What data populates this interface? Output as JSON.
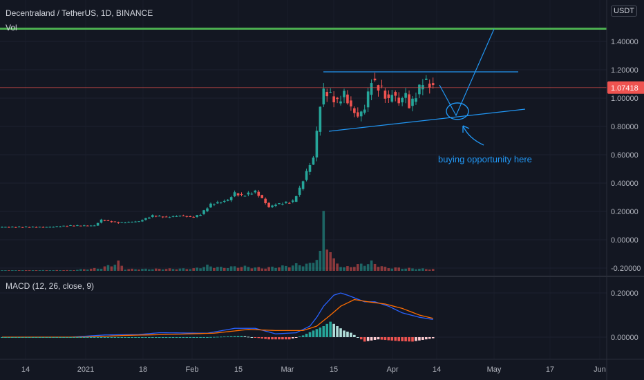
{
  "header": {
    "symbol": "Decentraland / TetherUS, 1D, BINANCE",
    "vol_label": "Vol",
    "macd_label": "MACD (12, 26, close, 9)",
    "unit": "USDT",
    "price_tag": "1.07418"
  },
  "annotation": {
    "text": "buying opportunity here"
  },
  "colors": {
    "background": "#131722",
    "up": "#26a69a",
    "down": "#ef5350",
    "resistance": "#4caf50",
    "annotation": "#2196f3",
    "macd": "#2962ff",
    "signal": "#ff6d00"
  },
  "chart_data": [
    {
      "type": "candlestick",
      "title": "Decentraland / TetherUS, 1D, BINANCE",
      "x_ticks": [
        "14",
        "2021",
        "18",
        "Feb",
        "15",
        "Mar",
        "15",
        "Apr",
        "14",
        "May",
        "17",
        "Jun"
      ],
      "y_ticks": [
        "1.40000",
        "1.20000",
        "1.00000",
        "0.80000",
        "0.60000",
        "0.40000",
        "0.20000",
        "0.00000",
        "-0.20000"
      ],
      "ylim": [
        -0.2,
        1.55
      ],
      "last_price": 1.07418,
      "resistance_level": 1.49,
      "price_path": [
        [
          0,
          0.09
        ],
        [
          14,
          0.09
        ],
        [
          20,
          0.1
        ],
        [
          27,
          0.1
        ],
        [
          29,
          0.14
        ],
        [
          34,
          0.12
        ],
        [
          40,
          0.13
        ],
        [
          44,
          0.17
        ],
        [
          48,
          0.16
        ],
        [
          52,
          0.17
        ],
        [
          56,
          0.16
        ],
        [
          58,
          0.18
        ],
        [
          61,
          0.25
        ],
        [
          66,
          0.28
        ],
        [
          68,
          0.33
        ],
        [
          70,
          0.31
        ],
        [
          74,
          0.34
        ],
        [
          76,
          0.29
        ],
        [
          78,
          0.23
        ],
        [
          80,
          0.25
        ],
        [
          85,
          0.27
        ],
        [
          87,
          0.36
        ],
        [
          89,
          0.48
        ],
        [
          91,
          0.58
        ],
        [
          93,
          0.95
        ],
        [
          94,
          1.05
        ],
        [
          96,
          1.02
        ],
        [
          98,
          0.97
        ],
        [
          100,
          1.03
        ],
        [
          102,
          0.93
        ],
        [
          104,
          0.87
        ],
        [
          106,
          0.93
        ],
        [
          108,
          1.13
        ],
        [
          109,
          1.1
        ],
        [
          111,
          1.06
        ],
        [
          113,
          0.98
        ],
        [
          114,
          1.04
        ],
        [
          116,
          0.97
        ],
        [
          118,
          1.03
        ],
        [
          119,
          0.94
        ],
        [
          121,
          1.02
        ],
        [
          123,
          1.12
        ],
        [
          125,
          1.1
        ],
        [
          126,
          1.07
        ]
      ],
      "volume": [
        [
          0,
          0.01
        ],
        [
          20,
          0.012
        ],
        [
          29,
          0.05
        ],
        [
          34,
          0.15
        ],
        [
          36,
          0.03
        ],
        [
          56,
          0.04
        ],
        [
          60,
          0.09
        ],
        [
          64,
          0.06
        ],
        [
          70,
          0.08
        ],
        [
          76,
          0.05
        ],
        [
          84,
          0.09
        ],
        [
          86,
          0.11
        ],
        [
          90,
          0.12
        ],
        [
          92,
          0.25
        ],
        [
          93,
          0.3
        ],
        [
          94,
          1.0
        ],
        [
          95,
          0.55
        ],
        [
          97,
          0.18
        ],
        [
          100,
          0.06
        ],
        [
          108,
          0.15
        ],
        [
          112,
          0.06
        ],
        [
          126,
          0.03
        ]
      ]
    },
    {
      "type": "line",
      "title": "MACD (12, 26, close, 9)",
      "y_ticks": [
        "0.20000",
        "0.00000"
      ],
      "ylim": [
        -0.03,
        0.23
      ],
      "series": [
        {
          "values": [
            [
              0,
              0.0
            ],
            [
              20,
              0.0
            ],
            [
              30,
              0.01
            ],
            [
              40,
              0.012
            ],
            [
              46,
              0.02
            ],
            [
              60,
              0.018
            ],
            [
              68,
              0.04
            ],
            [
              74,
              0.04
            ],
            [
              80,
              0.015
            ],
            [
              86,
              0.02
            ],
            [
              90,
              0.05
            ],
            [
              92,
              0.09
            ],
            [
              94,
              0.14
            ],
            [
              97,
              0.19
            ],
            [
              99,
              0.2
            ],
            [
              101,
              0.19
            ],
            [
              106,
              0.16
            ],
            [
              109,
              0.16
            ],
            [
              113,
              0.14
            ],
            [
              117,
              0.11
            ],
            [
              122,
              0.09
            ],
            [
              126,
              0.08
            ]
          ]
        },
        {
          "values": [
            [
              0,
              0.0
            ],
            [
              24,
              0.0
            ],
            [
              36,
              0.008
            ],
            [
              48,
              0.012
            ],
            [
              62,
              0.018
            ],
            [
              72,
              0.035
            ],
            [
              80,
              0.03
            ],
            [
              88,
              0.03
            ],
            [
              92,
              0.05
            ],
            [
              96,
              0.1
            ],
            [
              99,
              0.14
            ],
            [
              103,
              0.17
            ],
            [
              107,
              0.16
            ],
            [
              112,
              0.15
            ],
            [
              117,
              0.13
            ],
            [
              122,
              0.1
            ],
            [
              126,
              0.085
            ]
          ]
        }
      ],
      "histogram": [
        [
          0,
          0.0
        ],
        [
          60,
          0.0
        ],
        [
          70,
          0.006
        ],
        [
          78,
          -0.01
        ],
        [
          84,
          -0.01
        ],
        [
          88,
          0.008
        ],
        [
          91,
          0.03
        ],
        [
          94,
          0.05
        ],
        [
          96,
          0.07
        ],
        [
          98,
          0.05
        ],
        [
          100,
          0.03
        ],
        [
          102,
          0.02
        ],
        [
          104,
          0.0
        ],
        [
          106,
          -0.02
        ],
        [
          110,
          -0.01
        ],
        [
          116,
          -0.018
        ],
        [
          120,
          -0.02
        ],
        [
          124,
          -0.01
        ],
        [
          126,
          -0.005
        ]
      ]
    }
  ]
}
